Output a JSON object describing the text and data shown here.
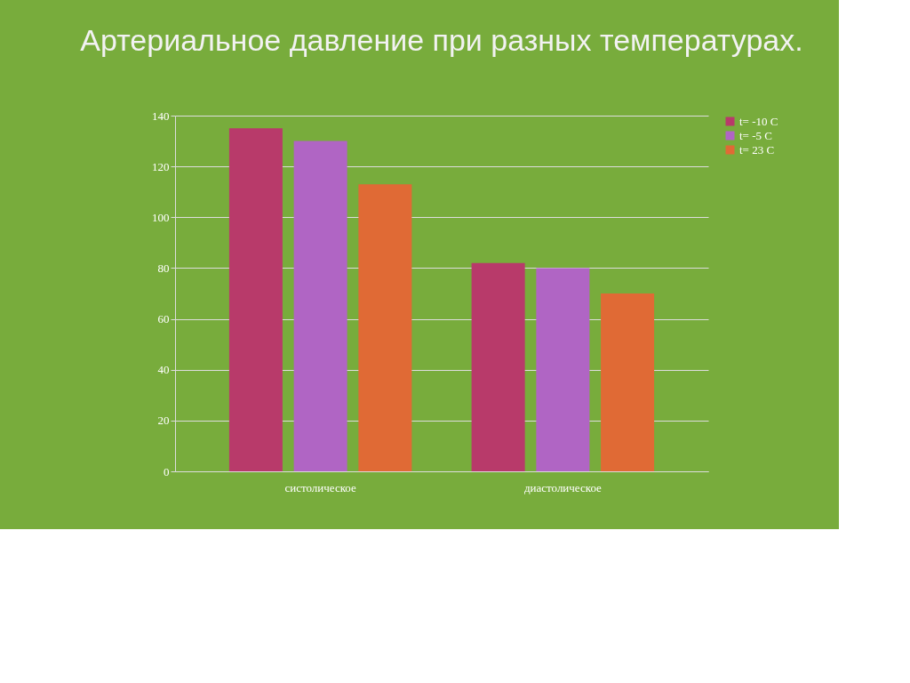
{
  "chart_data": {
    "type": "bar",
    "title": "Артериальное давление при разных температурах.",
    "categories": [
      "систолическое",
      "диастолическое"
    ],
    "series": [
      {
        "name": "t= -10 C",
        "color": "#b83a6a",
        "values": [
          135,
          82
        ]
      },
      {
        "name": "t= -5 C",
        "color": "#b065c4",
        "values": [
          130,
          80
        ]
      },
      {
        "name": "t= 23 C",
        "color": "#e06a35",
        "values": [
          113,
          70
        ]
      }
    ],
    "ylim": [
      0,
      140
    ],
    "yticks": [
      0,
      20,
      40,
      60,
      80,
      100,
      120,
      140
    ],
    "grid": "y",
    "legend": "right"
  }
}
